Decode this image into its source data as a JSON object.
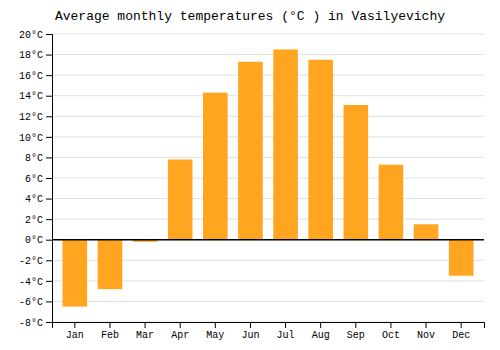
{
  "chart_data": {
    "type": "bar",
    "title": "Average monthly temperatures (°C ) in Vasilyevichy",
    "categories": [
      "Jan",
      "Feb",
      "Mar",
      "Apr",
      "May",
      "Jun",
      "Jul",
      "Aug",
      "Sep",
      "Oct",
      "Nov",
      "Dec"
    ],
    "values": [
      -6.5,
      -4.8,
      -0.2,
      7.8,
      14.3,
      17.3,
      18.5,
      17.5,
      13.1,
      7.3,
      1.5,
      -3.5
    ],
    "color": "#FFA520",
    "ylim": [
      -8,
      20
    ],
    "yticks": [
      {
        "value": -8,
        "label": "-8°C"
      },
      {
        "value": -6,
        "label": "-6°C"
      },
      {
        "value": -4,
        "label": "-4°C"
      },
      {
        "value": -2,
        "label": "-2°C"
      },
      {
        "value": 0,
        "label": "0°C"
      },
      {
        "value": 2,
        "label": "2°C"
      },
      {
        "value": 4,
        "label": "4°C"
      },
      {
        "value": 6,
        "label": "6°C"
      },
      {
        "value": 8,
        "label": "8°C"
      },
      {
        "value": 10,
        "label": "10°C"
      },
      {
        "value": 12,
        "label": "12°C"
      },
      {
        "value": 14,
        "label": "14°C"
      },
      {
        "value": 16,
        "label": "16°C"
      },
      {
        "value": 18,
        "label": "18°C"
      },
      {
        "value": 20,
        "label": "20°C"
      }
    ],
    "grid": true
  }
}
